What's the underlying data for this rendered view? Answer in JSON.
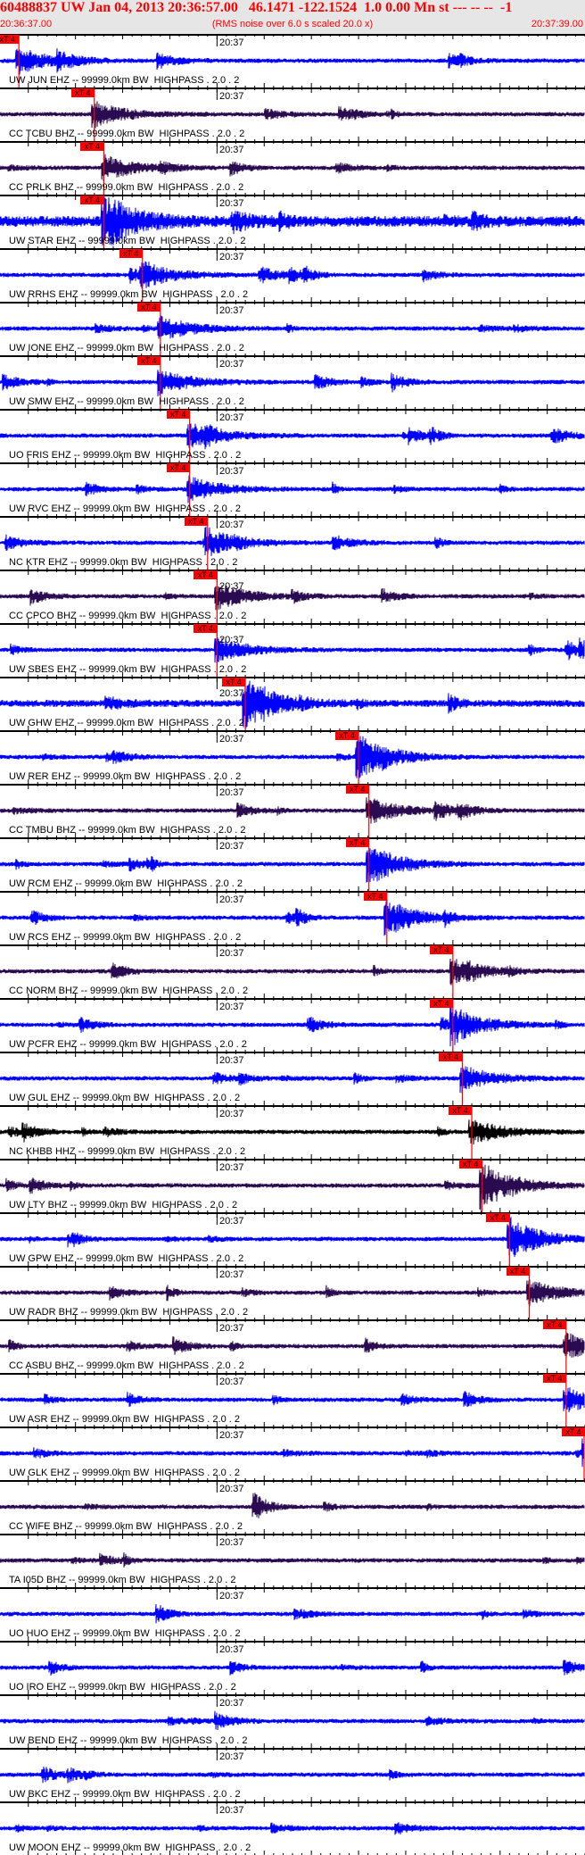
{
  "header": {
    "title": "60488837 UW Jan 04, 2013 20:36:57.00   46.1471 -122.1524  1.0 0.00 Mn st --- -- --  -1",
    "start_time": "20:36:37.00",
    "end_time": "20:37:39.00",
    "note": "(RMS noise over 6.0 s scaled 20.0 x)"
  },
  "panel_tick_label": "20:37",
  "pick_label": "xT 4",
  "colors": {
    "header_text": "#ff0000",
    "header_bg": "#e6e6e6",
    "pick": "#ff0000",
    "ehz_trace": "#0000ff",
    "bhz_trace": "#2a0a50",
    "hhz_trace": "#000000"
  },
  "chart_data": {
    "type": "line",
    "x_axis": {
      "start": "20:36:37.00",
      "end": "20:37:39.00",
      "duration_s": 62,
      "major_tick_s": 5,
      "minor_tick_s": 1,
      "labeled_tick": "20:37"
    },
    "traces": [
      {
        "label": "UW JUN EHZ -- 99999.0km BW  HIGHPASS . 2.0 . 2",
        "color": "#0000ff",
        "pick_s": 2.0
      },
      {
        "label": "CC TCBU BHZ -- 99999.0km BW  HIGHPASS . 2.0 . 2",
        "color": "#2a0a50",
        "pick_s": 10.0
      },
      {
        "label": "CC PRLK BHZ -- 99999.0km BW  HIGHPASS . 2.0 . 2",
        "color": "#2a0a50",
        "pick_s": 11.0
      },
      {
        "label": "UW STAR EHZ -- 99999.0km BW  HIGHPASS . 2.0 . 2",
        "color": "#0000ff",
        "pick_s": 11.0
      },
      {
        "label": "UW RRHS EHZ -- 99999.0km BW  HIGHPASS . 2.0 . 2",
        "color": "#0000ff",
        "pick_s": 15.1
      },
      {
        "label": "UW IONE EHZ -- 99999.0km BW  HIGHPASS . 2.0 . 2",
        "color": "#0000ff",
        "pick_s": 17.0
      },
      {
        "label": "UW SMW EHZ -- 99999.0km BW  HIGHPASS . 2.0 . 2",
        "color": "#0000ff",
        "pick_s": 17.0
      },
      {
        "label": "UO FRIS EHZ -- 99999.0km BW  HIGHPASS . 2.0 . 2",
        "color": "#0000ff",
        "pick_s": 20.1
      },
      {
        "label": "UW RVC EHZ -- 99999.0km BW  HIGHPASS . 2.0 . 2",
        "color": "#0000ff",
        "pick_s": 20.1
      },
      {
        "label": "NC KTR EHZ -- 99999.0km BW  HIGHPASS . 2.0 . 2",
        "color": "#0000ff",
        "pick_s": 22.0
      },
      {
        "label": "CC CPCO BHZ -- 99999.0km BW  HIGHPASS . 2.0 . 2",
        "color": "#2a0a50",
        "pick_s": 23.0
      },
      {
        "label": "UW SBES EHZ -- 99999.0km BW  HIGHPASS . 2.0 . 2",
        "color": "#0000ff",
        "pick_s": 23.0
      },
      {
        "label": "UW GHW EHZ -- 99999.0km BW  HIGHPASS . 2.0 . 2",
        "color": "#0000ff",
        "pick_s": 26.0
      },
      {
        "label": "UW RER EHZ -- 99999.0km BW  HIGHPASS . 2.0 . 2",
        "color": "#0000ff",
        "pick_s": 38.0
      },
      {
        "label": "CC TMBU BHZ -- 99999.0km BW  HIGHPASS . 2.0 . 2",
        "color": "#2a0a50",
        "pick_s": 39.1
      },
      {
        "label": "UW RCM EHZ -- 99999.0km BW  HIGHPASS . 2.0 . 2",
        "color": "#0000ff",
        "pick_s": 39.1
      },
      {
        "label": "UW RCS EHZ -- 99999.0km BW  HIGHPASS . 2.0 . 2",
        "color": "#0000ff",
        "pick_s": 41.0
      },
      {
        "label": "CC NORM BHZ -- 99999.0km BW  HIGHPASS . 2.0 . 2",
        "color": "#2a0a50",
        "pick_s": 48.0
      },
      {
        "label": "UW PCFR EHZ -- 99999.0km BW  HIGHPASS . 2.0 . 2",
        "color": "#0000ff",
        "pick_s": 48.0
      },
      {
        "label": "UW GUL EHZ -- 99999.0km BW  HIGHPASS . 2.0 . 2",
        "color": "#0000ff",
        "pick_s": 49.0
      },
      {
        "label": "NC KHBB HHZ -- 99999.0km BW  HIGHPASS . 2.0 . 2",
        "color": "#000000",
        "pick_s": 50.0
      },
      {
        "label": "UW LTY BHZ -- 99999.0km BW  HIGHPASS . 2.0 . 2",
        "color": "#2a0a50",
        "pick_s": 51.1
      },
      {
        "label": "UW GPW EHZ -- 99999.0km BW  HIGHPASS . 2.0 . 2",
        "color": "#0000ff",
        "pick_s": 54.0
      },
      {
        "label": "UW RADR BHZ -- 99999.0km BW  HIGHPASS . 2.0 . 2",
        "color": "#2a0a50",
        "pick_s": 56.1
      },
      {
        "label": "CC ASBU BHZ -- 99999.0km BW  HIGHPASS . 2.0 . 2",
        "color": "#2a0a50",
        "pick_s": 60.0
      },
      {
        "label": "UW ASR EHZ -- 99999.0km BW  HIGHPASS . 2.0 . 2",
        "color": "#0000ff",
        "pick_s": 60.0
      },
      {
        "label": "UW GLK EHZ -- 99999.0km BW  HIGHPASS . 2.0 . 2",
        "color": "#0000ff",
        "pick_s": 62.0
      },
      {
        "label": "CC WIFE BHZ -- 99999.0km BW  HIGHPASS . 2.0 . 2",
        "color": "#2a0a50",
        "pick_s": null
      },
      {
        "label": "TA I05D BHZ -- 99999.0km BW  HIGHPASS . 2.0 . 2",
        "color": "#2a0a50",
        "pick_s": null
      },
      {
        "label": "UO HUO EHZ -- 99999.0km BW  HIGHPASS . 2.0 . 2",
        "color": "#0000ff",
        "pick_s": null
      },
      {
        "label": "UO IRO EHZ -- 99999.0km BW  HIGHPASS . 2.0 . 2",
        "color": "#0000ff",
        "pick_s": null
      },
      {
        "label": "UW BEND EHZ -- 99999.0km BW  HIGHPASS . 2.0 . 2",
        "color": "#0000ff",
        "pick_s": null
      },
      {
        "label": "UW BKC EHZ -- 99999.0km BW  HIGHPASS . 2.0 . 2",
        "color": "#0000ff",
        "pick_s": null
      },
      {
        "label": "UW MOON EHZ -- 99999.0km BW  HIGHPASS . 2.0 . 2",
        "color": "#0000ff",
        "pick_s": null
      }
    ]
  }
}
